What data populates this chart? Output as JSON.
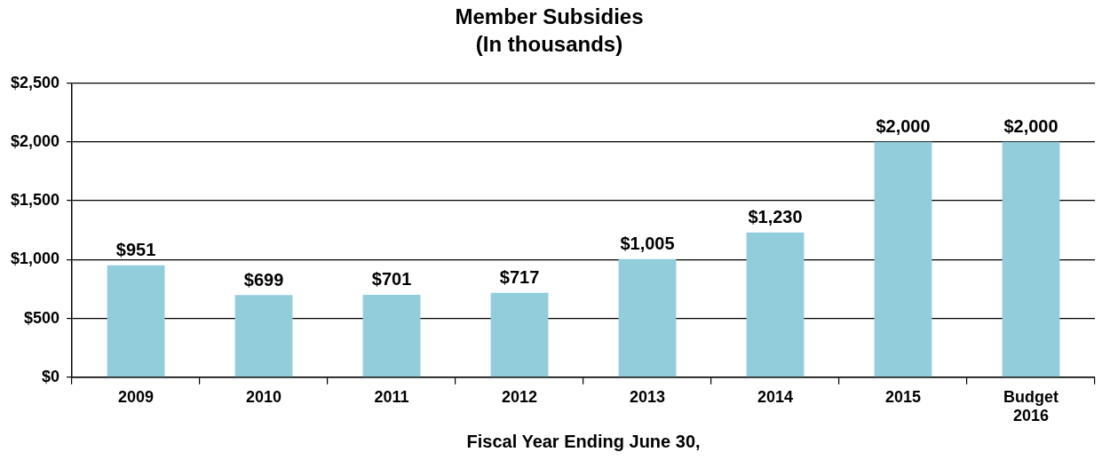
{
  "chart_data": {
    "type": "bar",
    "title": "Member Subsidies",
    "subtitle": "(In thousands)",
    "xlabel": "Fiscal Year Ending June 30,",
    "categories": [
      "2009",
      "2010",
      "2011",
      "2012",
      "2013",
      "2014",
      "2015",
      "Budget 2016"
    ],
    "values": [
      951,
      699,
      701,
      717,
      1005,
      1230,
      2000,
      2000
    ],
    "value_labels": [
      "$951",
      "$699",
      "$701",
      "$717",
      "$1,005",
      "$1,230",
      "$2,000",
      "$2,000"
    ],
    "color": "#92cddc",
    "ylim": [
      0,
      2500
    ],
    "yticks": [
      {
        "value": 0,
        "label": "$0"
      },
      {
        "value": 500,
        "label": "$500"
      },
      {
        "value": 1000,
        "label": "$1,000"
      },
      {
        "value": 1500,
        "label": "$1,500"
      },
      {
        "value": 2000,
        "label": "$2,000"
      },
      {
        "value": 2500,
        "label": "$2,500"
      }
    ],
    "grid": "y",
    "legend": false
  }
}
